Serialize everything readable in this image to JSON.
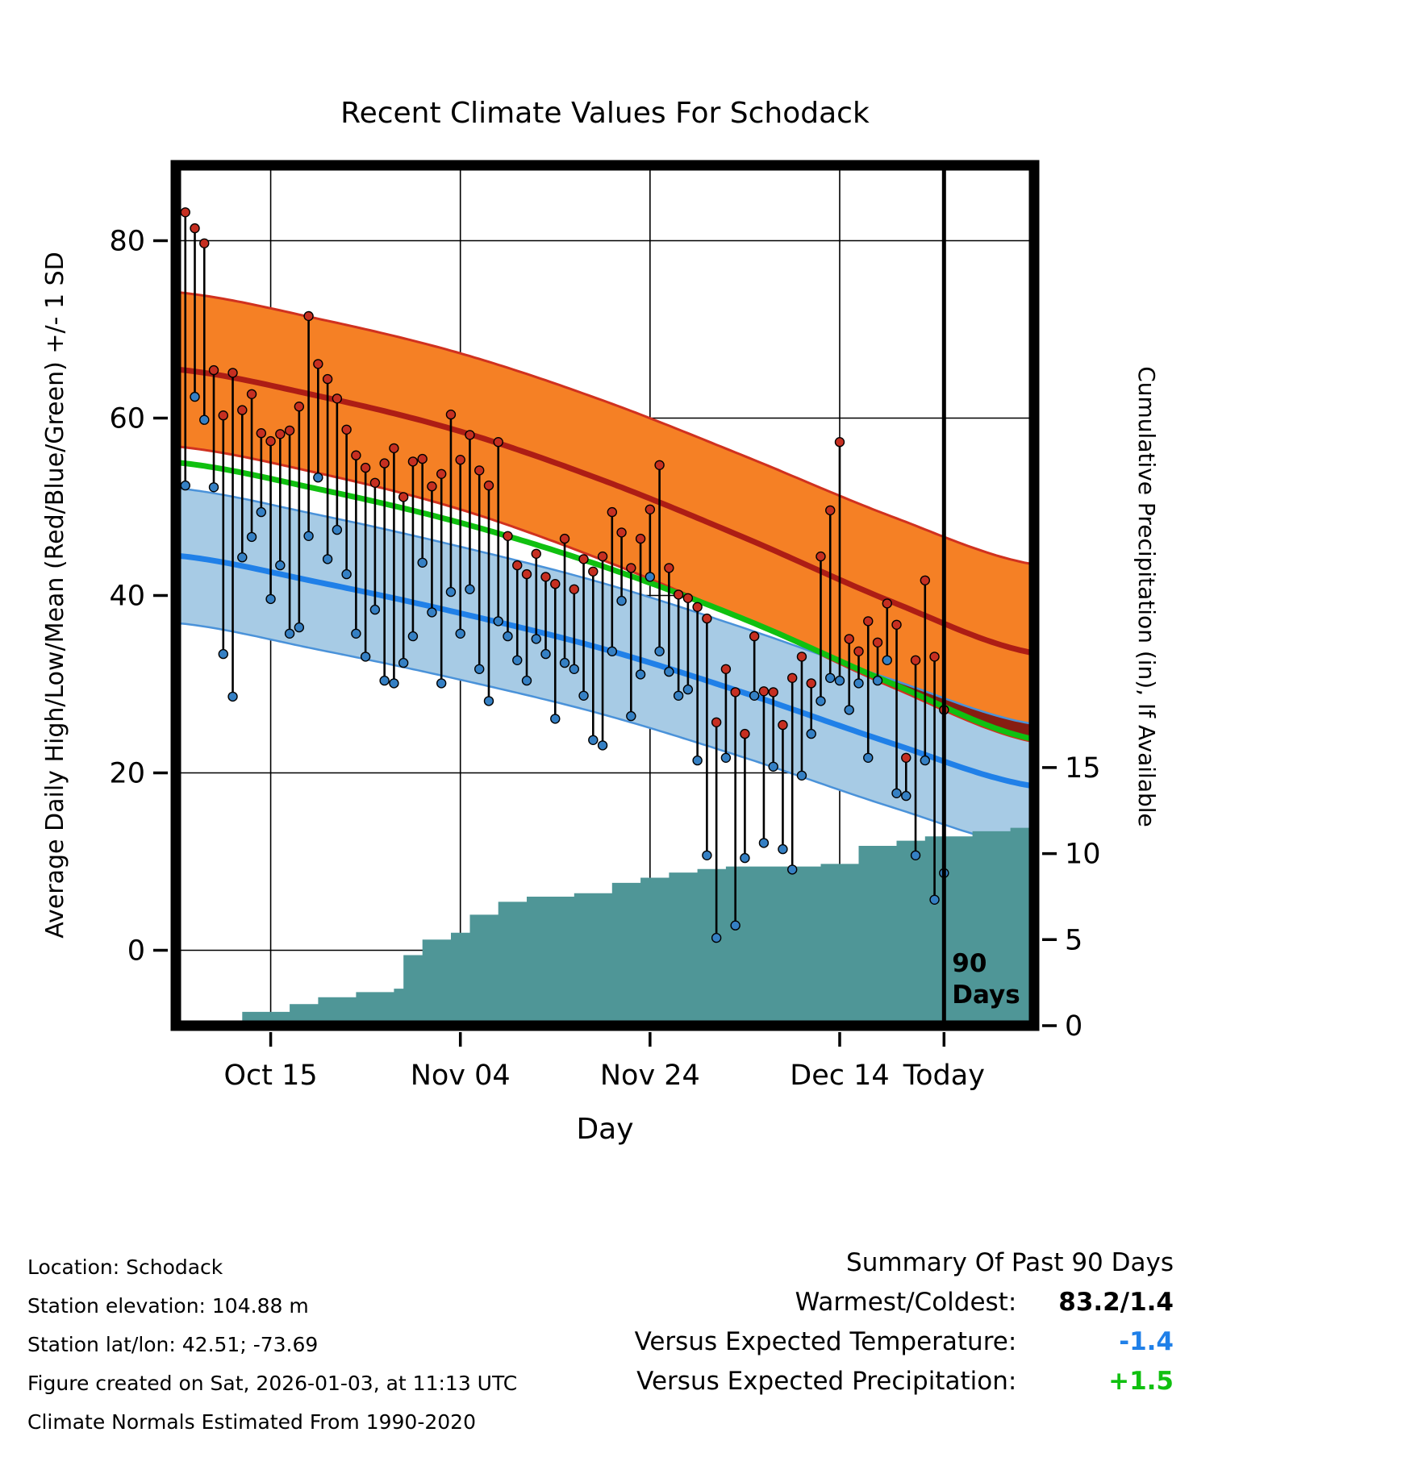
{
  "title": "Recent Climate Values For Schodack",
  "axes": {
    "y_left_label": "Average Daily High/Low/Mean (Red/Blue/Green) +/- 1 SD",
    "y_right_label": "Cumulative Precipitation (in), If Available",
    "x_label": "Day",
    "y_left_ticks": [
      0,
      20,
      40,
      60,
      80
    ],
    "y_right_ticks": [
      0,
      5,
      10,
      15
    ],
    "x_ticks": [
      {
        "label": "Oct 15",
        "day": 10
      },
      {
        "label": "Nov 04",
        "day": 30
      },
      {
        "label": "Nov 24",
        "day": 50
      },
      {
        "label": "Dec 14",
        "day": 70
      },
      {
        "label": "Today",
        "day": 81
      }
    ]
  },
  "annotation": {
    "line1": "90",
    "line2": "Days"
  },
  "chart_data": {
    "type": "line",
    "x_range": [
      0,
      90.5
    ],
    "temperature_axis_range": [
      -8.5,
      88.5
    ],
    "precip_axis_range": [
      0,
      50
    ],
    "today_day": 81,
    "daily": {
      "start_day": 1,
      "highs": [
        83.2,
        81.4,
        79.7,
        65.4,
        60.3,
        65.1,
        60.9,
        62.7,
        58.3,
        57.4,
        58.2,
        58.6,
        61.3,
        71.5,
        66.1,
        64.4,
        62.2,
        58.7,
        55.8,
        54.4,
        52.7,
        54.9,
        56.6,
        51.1,
        55.1,
        55.4,
        52.3,
        53.7,
        60.4,
        55.3,
        58.1,
        54.1,
        52.4,
        57.3,
        46.7,
        43.4,
        42.4,
        44.7,
        42.1,
        41.3,
        46.4,
        40.7,
        44.1,
        42.7,
        44.4,
        49.4,
        47.1,
        43.1,
        46.4,
        49.7,
        54.7,
        43.1,
        40.1,
        39.7,
        38.7,
        37.4,
        25.7,
        31.7,
        29.1,
        24.4,
        35.4,
        29.2,
        29.1,
        25.4,
        30.7,
        33.1,
        30.1,
        44.4,
        49.6,
        57.3,
        35.1,
        33.7,
        37.1,
        34.7,
        39.1,
        36.7,
        21.7,
        32.7,
        41.7,
        33.1,
        27.1
      ],
      "lows": [
        52.4,
        62.4,
        59.8,
        52.2,
        33.4,
        28.6,
        44.3,
        46.6,
        49.4,
        39.6,
        43.4,
        35.7,
        36.4,
        46.7,
        53.3,
        44.1,
        47.4,
        42.4,
        35.7,
        33.1,
        38.4,
        30.4,
        30.1,
        32.4,
        35.4,
        43.7,
        38.1,
        30.1,
        40.4,
        35.7,
        40.7,
        31.7,
        28.1,
        37.1,
        35.4,
        32.7,
        30.4,
        35.1,
        33.4,
        26.1,
        32.4,
        31.7,
        28.7,
        23.7,
        23.1,
        33.7,
        39.4,
        26.4,
        31.1,
        42.1,
        33.7,
        31.4,
        28.7,
        29.4,
        21.4,
        10.7,
        1.4,
        21.7,
        2.8,
        10.4,
        28.7,
        12.1,
        20.7,
        11.4,
        9.1,
        19.7,
        24.4,
        28.1,
        30.7,
        30.4,
        27.1,
        30.1,
        21.7,
        30.4,
        32.7,
        17.7,
        17.4,
        10.7,
        21.4,
        5.7,
        8.7
      ]
    },
    "normals": {
      "anchor_days": [
        0,
        15,
        30,
        45,
        60,
        75,
        90.5
      ],
      "high_mean": [
        65.5,
        62.5,
        58.5,
        53.0,
        46.5,
        39.5,
        33.5
      ],
      "high_sd": [
        8.7,
        8.7,
        8.8,
        9.0,
        9.2,
        9.6,
        10.0
      ],
      "low_mean": [
        44.5,
        41.5,
        38.0,
        34.0,
        29.0,
        23.5,
        18.5
      ],
      "low_sd": [
        7.6,
        7.6,
        7.5,
        7.4,
        7.3,
        7.2,
        7.0
      ],
      "mean": [
        55.0,
        52.0,
        48.2,
        43.3,
        37.3,
        30.3,
        23.8
      ]
    },
    "precipitation_cumulative": {
      "breakpoints": [
        [
          0,
          0
        ],
        [
          3,
          0.1
        ],
        [
          4,
          0.3
        ],
        [
          7,
          0.8
        ],
        [
          12,
          1.25
        ],
        [
          15,
          1.65
        ],
        [
          19,
          1.95
        ],
        [
          23,
          2.15
        ],
        [
          24,
          4.1
        ],
        [
          26,
          5.0
        ],
        [
          29,
          5.4
        ],
        [
          31,
          6.45
        ],
        [
          34,
          7.2
        ],
        [
          37,
          7.5
        ],
        [
          42,
          7.7
        ],
        [
          46,
          8.3
        ],
        [
          49,
          8.6
        ],
        [
          52,
          8.9
        ],
        [
          55,
          9.1
        ],
        [
          58,
          9.25
        ],
        [
          68,
          9.4
        ],
        [
          72,
          10.45
        ],
        [
          76,
          10.75
        ],
        [
          79,
          11.0
        ],
        [
          84,
          11.3
        ],
        [
          88,
          11.5
        ],
        [
          90.5,
          11.5
        ]
      ]
    }
  },
  "colors": {
    "high_band": "#f58025",
    "high_band_edge": "#d0311f",
    "high_line": "#ad1d15",
    "low_band": "#a7cbe5",
    "low_band_edge": "#4a92d9",
    "low_line": "#2080e8",
    "mean_line": "#10c010",
    "band_overlap": "#871d12",
    "precip_fill": "#4f9697",
    "high_dot": "#c62f21",
    "low_dot": "#3580c4",
    "grid": "#000000"
  },
  "footer": {
    "location": "Location: Schodack",
    "elevation": "Station elevation: 104.88 m",
    "latlon": "Station lat/lon: 42.51; -73.69",
    "created": "Figure created on Sat, 2026-01-03, at 11:13 UTC",
    "normals_note": "Climate Normals Estimated From 1990-2020"
  },
  "summary": {
    "title": "Summary Of Past 90 Days",
    "rows": [
      {
        "label": "Warmest/Coldest:  ",
        "value": "83.2/1.4",
        "color": "#000000"
      },
      {
        "label": "Versus Expected Temperature:  ",
        "value": "-1.4",
        "color": "#2080e8"
      },
      {
        "label": "Versus Expected Precipitation:  ",
        "value": "+1.5",
        "color": "#10c010"
      }
    ]
  }
}
